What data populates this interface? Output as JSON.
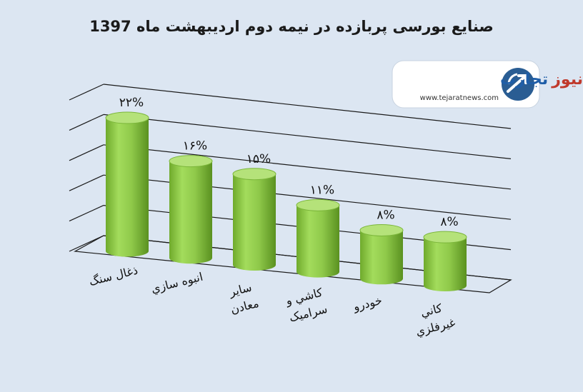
{
  "chart_data": {
    "type": "bar",
    "title": "صنایع بورسی پربازده در نیمه دوم اردیبهشت ماه 1397",
    "categories": [
      [
        "ذغال سنگ"
      ],
      [
        "انبوه سازي"
      ],
      [
        "ساير",
        "معادن"
      ],
      [
        "كاشي و",
        "سراميک"
      ],
      [
        "خودرو"
      ],
      [
        "كاني",
        "غيرفلزي"
      ]
    ],
    "values": [
      22,
      16,
      15,
      11,
      8,
      8
    ],
    "value_labels": [
      "۲۲%",
      "۱۶%",
      "۱۵%",
      "۱۱%",
      "۸%",
      "۸%"
    ],
    "ylim": [
      0,
      25
    ],
    "grid": true,
    "colors": {
      "bar": "#92d050",
      "bar_dark": "#5e9a1e",
      "bar_top": "#b5e27a",
      "background": "#dce6f2",
      "grid": "#1a1a1a"
    }
  },
  "logo": {
    "name_a": "تجارت",
    "name_b": "نیوز",
    "url": "www.tejaratnews.com",
    "icon": "tejarat-logo-icon"
  }
}
